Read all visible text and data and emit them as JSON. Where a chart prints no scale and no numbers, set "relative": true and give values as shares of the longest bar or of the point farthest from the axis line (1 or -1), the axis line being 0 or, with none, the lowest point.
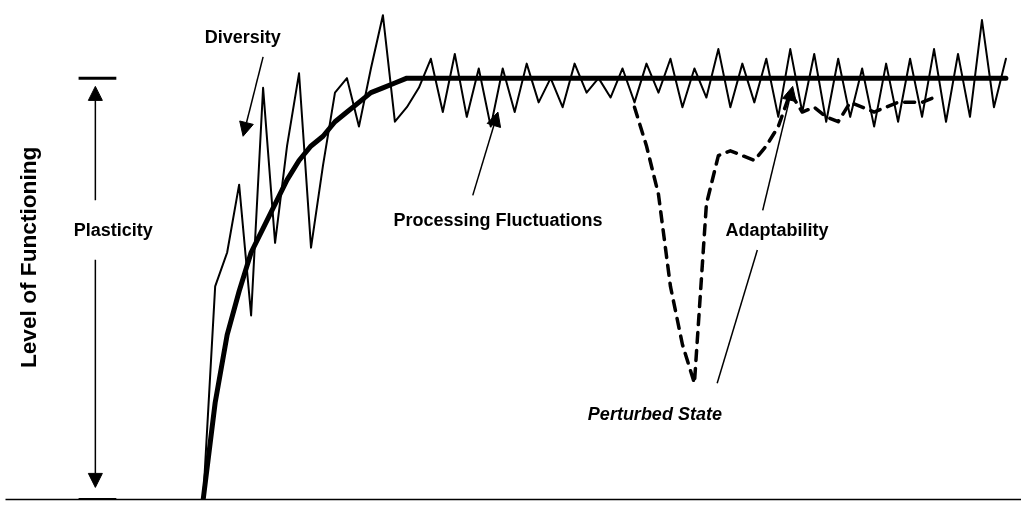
{
  "chart_data": {
    "type": "line",
    "relative": true,
    "categories": [
      null,
      null,
      null,
      null,
      null,
      null,
      null,
      null,
      null,
      null,
      null,
      null,
      null,
      null,
      null,
      null,
      null,
      null,
      null,
      null,
      null,
      null,
      null,
      null,
      null,
      null,
      null,
      null,
      null,
      null,
      null,
      null,
      null,
      null,
      null,
      null,
      null,
      null,
      null,
      null,
      null,
      null,
      null,
      null,
      null,
      null,
      null,
      null,
      null,
      null,
      null,
      null,
      null,
      null,
      null,
      null,
      null,
      null,
      null,
      null,
      null,
      null,
      null,
      null,
      null,
      null,
      null,
      null
    ],
    "series": [
      {
        "color": "#000000",
        "line_style": "solid",
        "values": [
          0,
          0.2,
          0.34,
          0.43,
          0.51,
          0.56,
          0.61,
          0.66,
          0.7,
          0.73,
          0.75,
          0.78,
          0.8,
          0.82,
          0.84,
          0.85,
          0.86,
          0.87,
          0.87,
          0.87,
          0.87,
          0.87,
          0.87,
          0.87,
          0.87,
          0.87,
          0.87,
          0.87,
          0.87,
          0.87,
          0.87,
          0.87,
          0.87,
          0.87,
          0.87,
          0.87,
          0.87,
          0.87,
          0.87,
          0.87,
          0.87,
          0.87,
          0.87,
          0.87,
          0.87,
          0.87,
          0.87,
          0.87,
          0.87,
          0.87,
          0.87,
          0.87,
          0.87,
          0.87,
          0.87,
          0.87,
          0.87,
          0.87,
          0.87,
          0.87,
          0.87,
          0.87,
          0.87,
          0.87,
          0.87,
          0.87,
          0.87,
          0.87
        ]
      },
      {
        "color": "#000000",
        "line_style": "solid",
        "values": [
          0,
          0.44,
          0.51,
          0.65,
          0.38,
          0.85,
          0.53,
          0.73,
          0.88,
          0.52,
          0.69,
          0.84,
          0.87,
          0.77,
          0.89,
          1.0,
          0.78,
          0.81,
          0.85,
          0.91,
          0.8,
          0.92,
          0.79,
          0.89,
          0.77,
          0.89,
          0.8,
          0.9,
          0.82,
          0.87,
          0.81,
          0.9,
          0.84,
          0.87,
          0.83,
          0.89,
          0.82,
          0.9,
          0.84,
          0.91,
          0.81,
          0.89,
          0.83,
          0.93,
          0.81,
          0.9,
          0.82,
          0.91,
          0.79,
          0.93,
          0.8,
          0.92,
          0.78,
          0.91,
          0.79,
          0.89,
          0.77,
          0.9,
          0.78,
          0.91,
          0.79,
          0.93,
          0.78,
          0.92,
          0.79,
          0.99,
          0.81,
          0.91
        ]
      },
      {
        "color": "#000000",
        "line_style": "dashed",
        "values": [
          null,
          null,
          null,
          null,
          null,
          null,
          null,
          null,
          null,
          null,
          null,
          null,
          null,
          null,
          null,
          null,
          null,
          null,
          null,
          null,
          null,
          null,
          null,
          null,
          null,
          null,
          null,
          null,
          null,
          null,
          null,
          null,
          null,
          null,
          null,
          null,
          0.81,
          0.73,
          0.63,
          0.44,
          0.32,
          0.24,
          0.61,
          0.71,
          0.72,
          0.71,
          0.7,
          0.73,
          0.77,
          0.84,
          0.8,
          0.81,
          0.79,
          0.78,
          0.82,
          0.81,
          0.8,
          0.81,
          0.82,
          0.82,
          0.82,
          0.83,
          null,
          null,
          null,
          null,
          null,
          null
        ]
      }
    ],
    "annotations": [
      "Level of Functioning",
      "Diversity",
      "Plasticity",
      "Processing Fluctuations",
      "Adaptability",
      "Perturbed State"
    ]
  }
}
